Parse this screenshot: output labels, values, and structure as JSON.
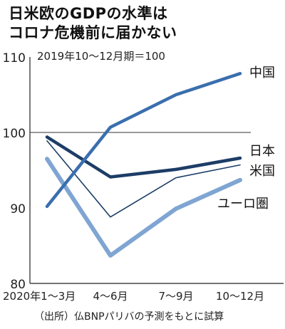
{
  "header": {
    "title_line1": "日米欧のGDPの水準は",
    "title_line2": "コロナ危機前に届かない"
  },
  "chart_data": {
    "type": "line",
    "note": "2019年10～12月期＝100",
    "categories": [
      "2020年1～3月",
      "4～6月",
      "7～9月",
      "10～12月"
    ],
    "y_ticks": [
      80,
      90,
      100,
      110
    ],
    "ylim": [
      80,
      110
    ],
    "reference_line": 100,
    "grid": false,
    "series": [
      {
        "name": "中国",
        "values": [
          90.2,
          100.7,
          105.0,
          107.8
        ],
        "color": "#3a6fae",
        "width": 4.5
      },
      {
        "name": "日本",
        "values": [
          99.4,
          94.1,
          95.1,
          96.6
        ],
        "color": "#1c3d66",
        "width": 4.5
      },
      {
        "name": "米国",
        "values": [
          98.9,
          88.8,
          94.0,
          95.7
        ],
        "color": "#1c3d66",
        "width": 1.6
      },
      {
        "name": "ユーロ圏",
        "values": [
          96.5,
          83.7,
          89.9,
          93.7
        ],
        "color": "#7fa5d2",
        "width": 6
      }
    ],
    "source": "（出所）仏BNPパリバの予測をもとに試算"
  }
}
